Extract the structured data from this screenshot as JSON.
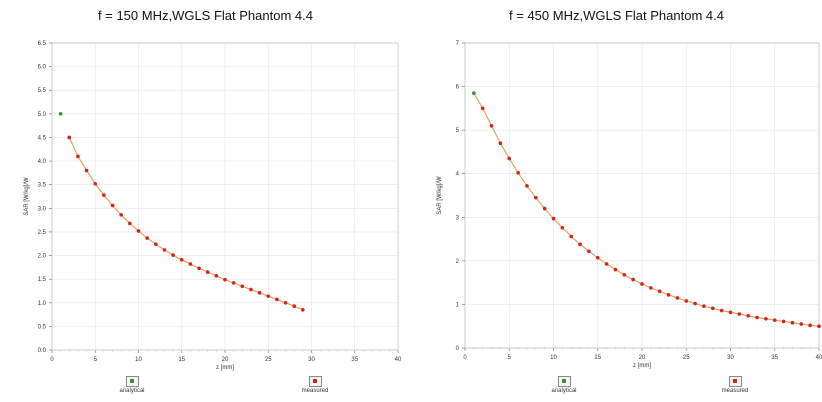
{
  "chart_data": [
    {
      "type": "scatter",
      "title": "f = 150 MHz,WGLS Flat Phantom 4.4",
      "xlabel": "z [mm]",
      "ylabel": "SAR [W/kg]/W",
      "xlim": [
        0,
        40
      ],
      "ylim": [
        0,
        6.5
      ],
      "xticks": [
        "0",
        "5",
        "10",
        "15",
        "20",
        "25",
        "30",
        "35",
        "40"
      ],
      "yticks": [
        "0.0",
        "0.5",
        "1.0",
        "1.5",
        "2.0",
        "2.5",
        "3.0",
        "3.5",
        "4.0",
        "4.5",
        "5.0",
        "5.5",
        "6.0",
        "6.5"
      ],
      "grid": true,
      "legend_placement": "bottom",
      "series": [
        {
          "name": "analytical",
          "color": "#3a8f3a",
          "x": [
            1,
            2
          ],
          "y": [
            5.0,
            4.5
          ]
        },
        {
          "name": "measured",
          "color": "#d0241c",
          "x": [
            2,
            3,
            4,
            5,
            6,
            7,
            8,
            9,
            10,
            11,
            12,
            13,
            14,
            15,
            16,
            17,
            18,
            19,
            20,
            21,
            22,
            23,
            24,
            25,
            26,
            27,
            28,
            29
          ],
          "y": [
            4.5,
            4.1,
            3.8,
            3.52,
            3.28,
            3.06,
            2.86,
            2.68,
            2.52,
            2.37,
            2.24,
            2.12,
            2.01,
            1.91,
            1.82,
            1.73,
            1.65,
            1.57,
            1.49,
            1.42,
            1.35,
            1.28,
            1.21,
            1.14,
            1.07,
            1.0,
            0.93,
            0.85
          ]
        }
      ],
      "line": {
        "color": "#e8a060",
        "x": [
          2,
          3,
          4,
          5,
          6,
          7,
          8,
          9,
          10,
          11,
          12,
          13,
          14,
          15,
          16,
          17,
          18,
          19,
          20,
          21,
          22,
          23,
          24,
          25,
          26,
          27,
          28,
          29
        ],
        "y": [
          4.5,
          4.1,
          3.8,
          3.52,
          3.28,
          3.06,
          2.86,
          2.68,
          2.52,
          2.37,
          2.24,
          2.12,
          2.01,
          1.91,
          1.82,
          1.73,
          1.65,
          1.57,
          1.49,
          1.42,
          1.35,
          1.28,
          1.21,
          1.14,
          1.07,
          1.0,
          0.93,
          0.85
        ]
      }
    },
    {
      "type": "scatter",
      "title": "f = 450 MHz,WGLS Flat Phantom 4.4",
      "xlabel": "z [mm]",
      "ylabel": "SAR [W/kg]/W",
      "xlim": [
        0,
        40
      ],
      "ylim": [
        0,
        7
      ],
      "xticks": [
        "0",
        "5",
        "10",
        "15",
        "20",
        "25",
        "30",
        "35",
        "40"
      ],
      "yticks": [
        "0",
        "1",
        "2",
        "3",
        "4",
        "5",
        "6",
        "7"
      ],
      "grid": true,
      "legend_placement": "bottom",
      "series": [
        {
          "name": "analytical",
          "color": "#3a8f3a",
          "x": [
            1
          ],
          "y": [
            5.85
          ]
        },
        {
          "name": "measured",
          "color": "#d0241c",
          "x": [
            2,
            3,
            4,
            5,
            6,
            7,
            8,
            9,
            10,
            11,
            12,
            13,
            14,
            15,
            16,
            17,
            18,
            19,
            20,
            21,
            22,
            23,
            24,
            25,
            26,
            27,
            28,
            29,
            30,
            31,
            32,
            33,
            34,
            35,
            36,
            37,
            38,
            39,
            40
          ],
          "y": [
            5.5,
            5.1,
            4.7,
            4.35,
            4.02,
            3.72,
            3.45,
            3.2,
            2.97,
            2.76,
            2.56,
            2.38,
            2.22,
            2.07,
            1.93,
            1.8,
            1.68,
            1.57,
            1.47,
            1.38,
            1.3,
            1.22,
            1.15,
            1.08,
            1.02,
            0.96,
            0.91,
            0.86,
            0.82,
            0.78,
            0.74,
            0.7,
            0.67,
            0.64,
            0.61,
            0.58,
            0.55,
            0.52,
            0.5
          ]
        }
      ],
      "line": {
        "color": "#e8a060",
        "x": [
          1,
          2,
          3,
          4,
          5,
          6,
          7,
          8,
          9,
          10,
          11,
          12,
          13,
          14,
          15,
          16,
          17,
          18,
          19,
          20,
          21,
          22,
          23,
          24,
          25,
          26,
          27,
          28,
          29,
          30,
          31,
          32,
          33,
          34,
          35,
          36,
          37,
          38,
          39,
          40
        ],
        "y": [
          5.85,
          5.5,
          5.1,
          4.7,
          4.35,
          4.02,
          3.72,
          3.45,
          3.2,
          2.97,
          2.76,
          2.56,
          2.38,
          2.22,
          2.07,
          1.93,
          1.8,
          1.68,
          1.57,
          1.47,
          1.38,
          1.3,
          1.22,
          1.15,
          1.08,
          1.02,
          0.96,
          0.91,
          0.86,
          0.82,
          0.78,
          0.74,
          0.7,
          0.67,
          0.64,
          0.61,
          0.58,
          0.55,
          0.52,
          0.5
        ]
      }
    }
  ]
}
